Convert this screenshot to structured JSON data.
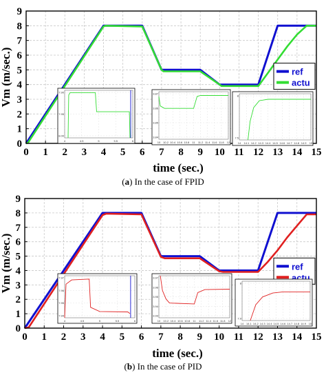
{
  "chart_data": [
    {
      "type": "line",
      "caption_tag": "(a)",
      "caption_text": " In the case of FPID",
      "xlabel": "time (sec.)",
      "ylabel": "Vm (m/sec.)",
      "xlim": [
        0,
        15
      ],
      "ylim": [
        0,
        9
      ],
      "x_ticks": [
        "0",
        "1",
        "2",
        "3",
        "4",
        "5",
        "6",
        "7",
        "8",
        "9",
        "10",
        "11",
        "12",
        "13",
        "14",
        "15"
      ],
      "y_ticks": [
        "0",
        "1",
        "2",
        "3",
        "4",
        "5",
        "6",
        "7",
        "8",
        "9"
      ],
      "grid": true,
      "legend_position": "right",
      "series": [
        {
          "name": "ref",
          "color": "#1010d0",
          "x": [
            0,
            4,
            6,
            7,
            9,
            10,
            12,
            13,
            15
          ],
          "y": [
            0,
            8,
            8,
            5,
            5,
            4,
            4,
            8,
            8
          ]
        },
        {
          "name": "actu",
          "color": "#33dd33",
          "x": [
            0,
            0.1,
            4,
            4.1,
            6,
            7,
            7.1,
            9,
            10,
            10.1,
            12,
            12.5,
            13,
            13.5,
            14,
            14.5,
            15
          ],
          "y": [
            0,
            0.05,
            7.95,
            8,
            7.95,
            5,
            4.9,
            4.9,
            4,
            3.9,
            3.9,
            4.8,
            5.7,
            6.6,
            7.4,
            8,
            8
          ]
        }
      ],
      "insets": [
        {
          "x_ticks": [
            "4",
            "4.5",
            "5",
            "5.5",
            "6"
          ],
          "y_ticks": [
            "7.90",
            "7.95",
            "8.00"
          ]
        },
        {
          "x_ticks": [
            "10",
            "10.2",
            "10.4",
            "10.6",
            "10.8",
            "11",
            "11.2",
            "11.4",
            "11.6",
            "11.8",
            "12"
          ],
          "y_ticks": [
            "3.87",
            "3.86",
            "3.85",
            "3.84"
          ]
        },
        {
          "x_ticks": [
            "14",
            "14.1",
            "14.2",
            "14.3",
            "14.4",
            "14.5",
            "14.6",
            "14.7",
            "14.8",
            "14.9",
            "15"
          ],
          "y_ticks": [
            "8",
            "7.5"
          ]
        }
      ]
    },
    {
      "type": "line",
      "caption_tag": "(b)",
      "caption_text": " In the case of PID",
      "xlabel": "time (sec.)",
      "ylabel": "Vm (m/sec.)",
      "xlim": [
        0,
        15
      ],
      "ylim": [
        0,
        9
      ],
      "x_ticks": [
        "0",
        "1",
        "2",
        "3",
        "4",
        "5",
        "6",
        "7",
        "8",
        "9",
        "10",
        "11",
        "12",
        "13",
        "14",
        "15"
      ],
      "y_ticks": [
        "0",
        "1",
        "2",
        "3",
        "4",
        "5",
        "6",
        "7",
        "8",
        "9"
      ],
      "grid": true,
      "legend_position": "right",
      "series": [
        {
          "name": "ref",
          "color": "#1010d0",
          "x": [
            0,
            4,
            6,
            7,
            9,
            10,
            12,
            13,
            15
          ],
          "y": [
            0,
            8,
            8,
            5,
            5,
            4,
            4,
            8,
            8
          ]
        },
        {
          "name": "actu",
          "color": "#e02020",
          "x": [
            0,
            0.2,
            4,
            4.2,
            6,
            7,
            7.2,
            9,
            10,
            10.2,
            12,
            12.5,
            13,
            13.5,
            14,
            14.5,
            15
          ],
          "y": [
            0,
            0.05,
            7.85,
            7.95,
            7.9,
            4.95,
            4.85,
            4.85,
            3.95,
            3.9,
            3.9,
            4.6,
            5.4,
            6.3,
            7.1,
            7.9,
            7.9
          ]
        }
      ],
      "insets": [
        {
          "x_ticks": [
            "4",
            "4.5",
            "5",
            "5.5",
            "6"
          ],
          "y_ticks": [
            "7.97",
            "7.96",
            "7.95",
            "7.94"
          ]
        },
        {
          "x_ticks": [
            "10",
            "10.2",
            "10.4",
            "10.6",
            "10.8",
            "11",
            "11.2",
            "11.4",
            "11.6",
            "11.8",
            "12"
          ],
          "y_ticks": [
            "3.97",
            "3.96",
            "3.95",
            "3.94",
            "3.93"
          ]
        },
        {
          "x_ticks": [
            "14",
            "14.1",
            "14.2",
            "14.3",
            "14.4",
            "14.5",
            "14.6",
            "14.7",
            "14.8",
            "14.9",
            "15"
          ],
          "y_ticks": [
            "8",
            "7.9"
          ]
        }
      ]
    }
  ]
}
